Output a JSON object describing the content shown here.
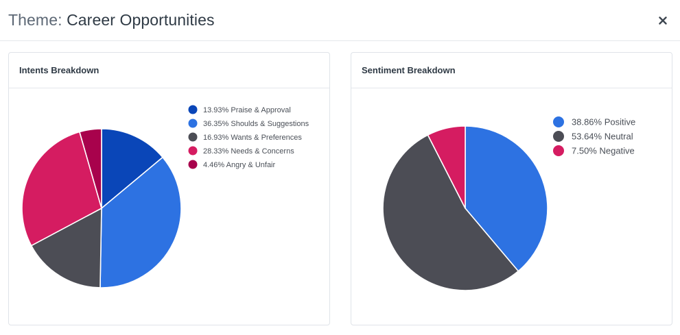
{
  "header": {
    "title_prefix": "Theme:",
    "title_name": "Career Opportunities",
    "close_glyph": "×"
  },
  "chart_data": [
    {
      "type": "pie",
      "title": "Intents Breakdown",
      "labels": [
        "13.93% Praise & Approval",
        "36.35% Shoulds & Suggestions",
        "16.93% Wants & Preferences",
        "28.33% Needs & Concerns",
        "4.46% Angry & Unfair"
      ],
      "values": [
        13.93,
        36.35,
        16.93,
        28.33,
        4.46
      ],
      "colors": [
        "#0a46b8",
        "#2d72e2",
        "#4c4d55",
        "#d51c61",
        "#a8024c"
      ],
      "legend": "top-right"
    },
    {
      "type": "pie",
      "title": "Sentiment Breakdown",
      "labels": [
        "38.86% Positive",
        "53.64% Neutral",
        "7.50% Negative"
      ],
      "values": [
        38.86,
        53.64,
        7.5
      ],
      "colors": [
        "#2d72e2",
        "#4c4d55",
        "#d51c61"
      ],
      "legend": "top-right"
    }
  ]
}
